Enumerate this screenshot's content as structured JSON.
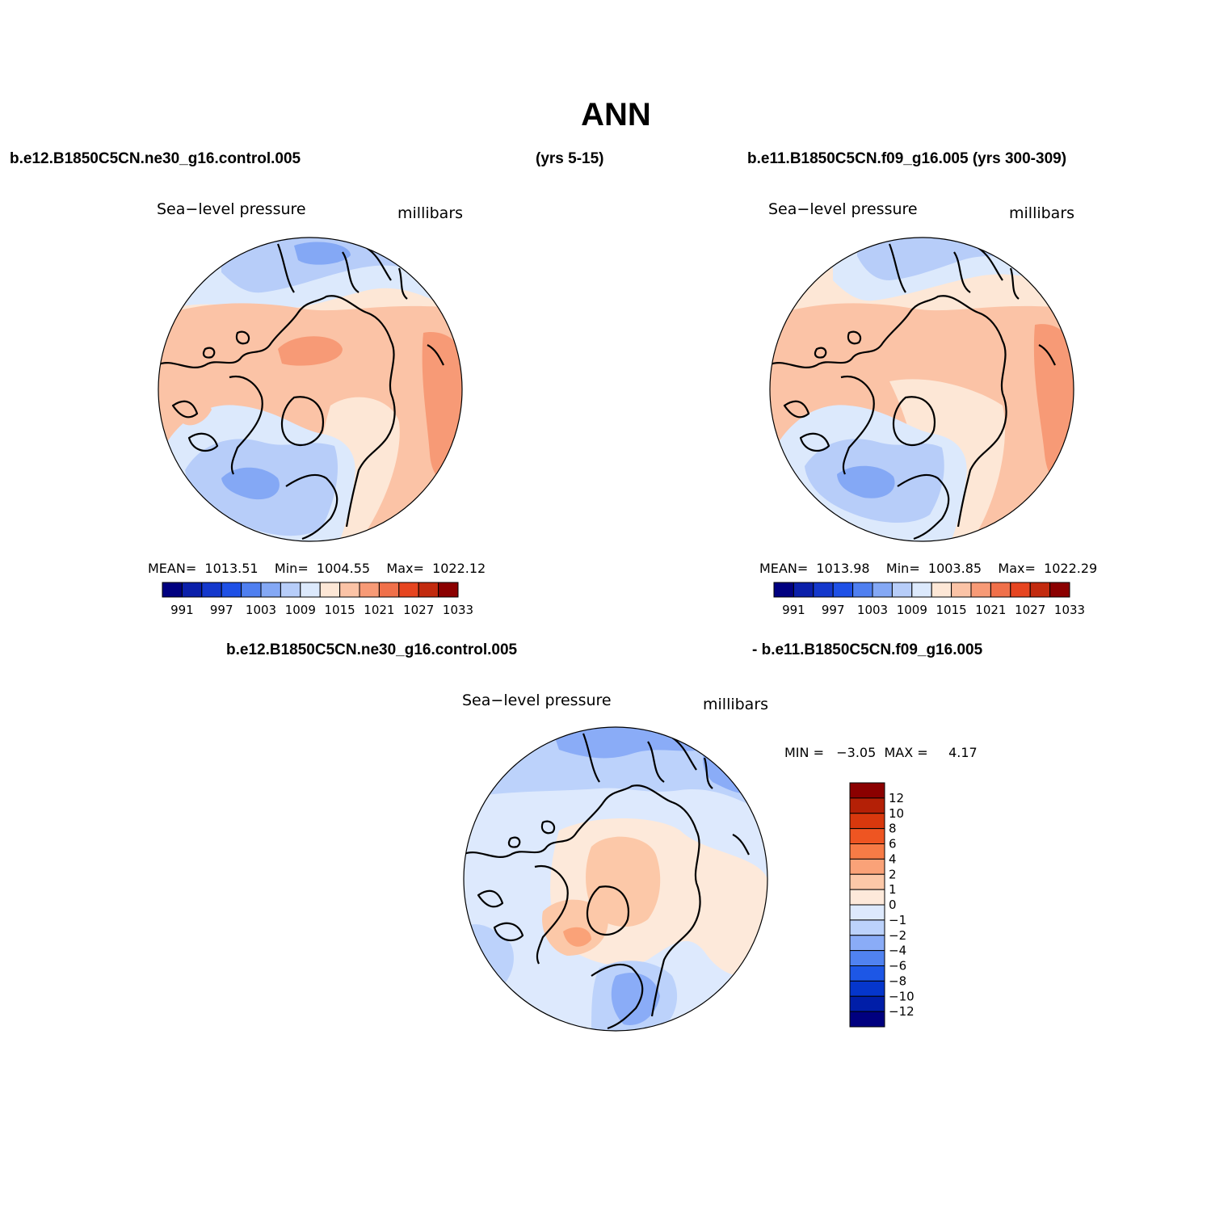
{
  "title": "ANN",
  "case1": "b.e12.B1850C5CN.ne30_g16.control.005",
  "case1_years": "(yrs 5-15)",
  "case2": "b.e11.B1850C5CN.f09_g16.005 (yrs 300-309)",
  "diff_case1": "b.e12.B1850C5CN.ne30_g16.control.005",
  "diff_case2": "- b.e11.B1850C5CN.f09_g16.005",
  "panels": [
    {
      "variable": "Sea−level pressure",
      "units": "millibars",
      "stats": {
        "mean_label": "MEAN=",
        "mean": "1013.51",
        "min_label": "Min=",
        "min": "1004.55",
        "max_label": "Max=",
        "max": "1022.12"
      }
    },
    {
      "variable": "Sea−level pressure",
      "units": "millibars",
      "stats": {
        "mean_label": "MEAN=",
        "mean": "1013.98",
        "min_label": "Min=",
        "min": "1003.85",
        "max_label": "Max=",
        "max": "1022.29"
      }
    },
    {
      "variable": "Sea−level pressure",
      "units": "millibars",
      "stats": {
        "min_label": "MIN =",
        "min": "−3.05",
        "max_label": "MAX =",
        "max": "4.17"
      }
    }
  ],
  "colorbar_abs": {
    "colors": [
      "#000080",
      "#0a1faa",
      "#1438cc",
      "#1e50e6",
      "#4f7ff0",
      "#84a8f5",
      "#b7cdf9",
      "#dce9fc",
      "#fde7d6",
      "#fbc3a6",
      "#f79a76",
      "#f0704a",
      "#e64520",
      "#c22a0e",
      "#8b0000"
    ],
    "labels": [
      "991",
      "997",
      "1003",
      "1009",
      "1015",
      "1021",
      "1027",
      "1033"
    ]
  },
  "colorbar_diff": {
    "colors": [
      "#00007f",
      "#001ea8",
      "#0536cc",
      "#1d57e6",
      "#5082f0",
      "#8aacf7",
      "#bcd2fb",
      "#dde9fd",
      "#fde9da",
      "#fcc8a8",
      "#faa278",
      "#f77b46",
      "#ee5522",
      "#d8380d",
      "#b42006",
      "#8b0000"
    ],
    "labels": [
      "12",
      "10",
      "8",
      "6",
      "4",
      "2",
      "1",
      "0",
      "−1",
      "−2",
      "−4",
      "−6",
      "−8",
      "−10",
      "−12"
    ]
  },
  "colors": {
    "land_outline": "#000000",
    "background": "#ffffff"
  }
}
